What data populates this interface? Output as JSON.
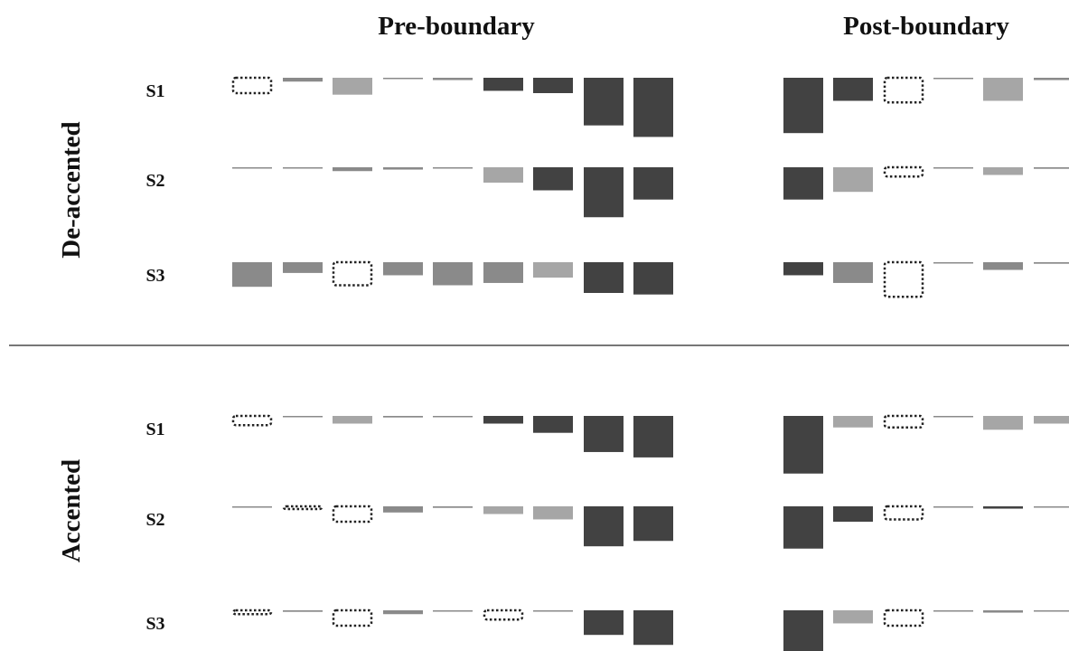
{
  "column_titles": [
    "Pre-boundary",
    "Post-boundary"
  ],
  "conditions": [
    {
      "label": "De-accented",
      "rows": [
        {
          "label": "S1",
          "pre": [
            {
              "t": "d",
              "h": 0.2
            },
            {
              "t": "m",
              "h": 0.05
            },
            {
              "t": "l",
              "h": 0.22
            },
            {
              "t": "m",
              "h": 0.015
            },
            {
              "t": "m",
              "h": 0.03
            },
            {
              "t": "k",
              "h": 0.17
            },
            {
              "t": "k",
              "h": 0.2
            },
            {
              "t": "k",
              "h": 0.62
            },
            {
              "t": "k",
              "h": 0.77
            }
          ],
          "post": [
            {
              "t": "k",
              "h": 0.72
            },
            {
              "t": "k",
              "h": 0.3
            },
            {
              "t": "d",
              "h": 0.32
            },
            {
              "t": "m",
              "h": 0.015
            },
            {
              "t": "l",
              "h": 0.3
            },
            {
              "t": "m",
              "h": 0.03
            }
          ]
        },
        {
          "label": "S2",
          "pre": [
            {
              "t": "m",
              "h": 0.01
            },
            {
              "t": "m",
              "h": 0.01
            },
            {
              "t": "m",
              "h": 0.05
            },
            {
              "t": "m",
              "h": 0.03
            },
            {
              "t": "m",
              "h": 0.01
            },
            {
              "t": "l",
              "h": 0.2
            },
            {
              "t": "k",
              "h": 0.3
            },
            {
              "t": "k",
              "h": 0.65
            },
            {
              "t": "k",
              "h": 0.42
            }
          ],
          "post": [
            {
              "t": "k",
              "h": 0.42
            },
            {
              "t": "l",
              "h": 0.32
            },
            {
              "t": "d",
              "h": 0.12
            },
            {
              "t": "m",
              "h": 0.015
            },
            {
              "t": "l",
              "h": 0.1
            },
            {
              "t": "m",
              "h": 0.02
            }
          ]
        },
        {
          "label": "S3",
          "pre": [
            {
              "t": "m",
              "h": 0.32
            },
            {
              "t": "m",
              "h": 0.14
            },
            {
              "t": "d",
              "h": 0.3
            },
            {
              "t": "m",
              "h": 0.17
            },
            {
              "t": "m",
              "h": 0.3
            },
            {
              "t": "m",
              "h": 0.27
            },
            {
              "t": "l",
              "h": 0.2
            },
            {
              "t": "k",
              "h": 0.4
            },
            {
              "t": "k",
              "h": 0.42
            }
          ],
          "post": [
            {
              "t": "k",
              "h": 0.17
            },
            {
              "t": "m",
              "h": 0.27
            },
            {
              "t": "d",
              "h": 0.45
            },
            {
              "t": "m",
              "h": 0.015
            },
            {
              "t": "m",
              "h": 0.1
            },
            {
              "t": "m",
              "h": 0.02
            }
          ]
        }
      ]
    },
    {
      "label": "Accented",
      "rows": [
        {
          "label": "S1",
          "pre": [
            {
              "t": "d",
              "h": 0.12
            },
            {
              "t": "m",
              "h": 0.01
            },
            {
              "t": "l",
              "h": 0.1
            },
            {
              "t": "m",
              "h": 0.02
            },
            {
              "t": "m",
              "h": 0.015
            },
            {
              "t": "k",
              "h": 0.1
            },
            {
              "t": "k",
              "h": 0.22
            },
            {
              "t": "k",
              "h": 0.47
            },
            {
              "t": "k",
              "h": 0.54
            }
          ],
          "post": [
            {
              "t": "k",
              "h": 0.75
            },
            {
              "t": "l",
              "h": 0.15
            },
            {
              "t": "d",
              "h": 0.15
            },
            {
              "t": "m",
              "h": 0.01
            },
            {
              "t": "l",
              "h": 0.18
            },
            {
              "t": "l",
              "h": 0.1
            }
          ]
        },
        {
          "label": "S2",
          "pre": [
            {
              "t": "m",
              "h": 0.015
            },
            {
              "t": "d",
              "h": 0.02
            },
            {
              "t": "d",
              "h": 0.2
            },
            {
              "t": "m",
              "h": 0.08
            },
            {
              "t": "m",
              "h": 0.02
            },
            {
              "t": "l",
              "h": 0.1
            },
            {
              "t": "l",
              "h": 0.17
            },
            {
              "t": "k",
              "h": 0.52
            },
            {
              "t": "k",
              "h": 0.45
            }
          ],
          "post": [
            {
              "t": "k",
              "h": 0.55
            },
            {
              "t": "k",
              "h": 0.2
            },
            {
              "t": "d",
              "h": 0.17
            },
            {
              "t": "m",
              "h": 0.01
            },
            {
              "t": "k",
              "h": 0.03
            },
            {
              "t": "m",
              "h": 0.01
            }
          ]
        },
        {
          "label": "S3",
          "pre": [
            {
              "t": "d",
              "h": 0.05
            },
            {
              "t": "m",
              "h": 0.02
            },
            {
              "t": "d",
              "h": 0.2
            },
            {
              "t": "m",
              "h": 0.05
            },
            {
              "t": "m",
              "h": 0.01
            },
            {
              "t": "d",
              "h": 0.12
            },
            {
              "t": "m",
              "h": 0.01
            },
            {
              "t": "k",
              "h": 0.32
            },
            {
              "t": "k",
              "h": 0.45
            }
          ],
          "post": [
            {
              "t": "k",
              "h": 0.55
            },
            {
              "t": "l",
              "h": 0.17
            },
            {
              "t": "d",
              "h": 0.2
            },
            {
              "t": "m",
              "h": 0.01
            },
            {
              "t": "m",
              "h": 0.03
            },
            {
              "t": "m",
              "h": 0.01
            }
          ]
        }
      ]
    }
  ],
  "colors": {
    "k": "#424242",
    "m": "#8a8a8a",
    "l": "#a6a6a6",
    "d": "#222222",
    "divider": "#777777"
  }
}
